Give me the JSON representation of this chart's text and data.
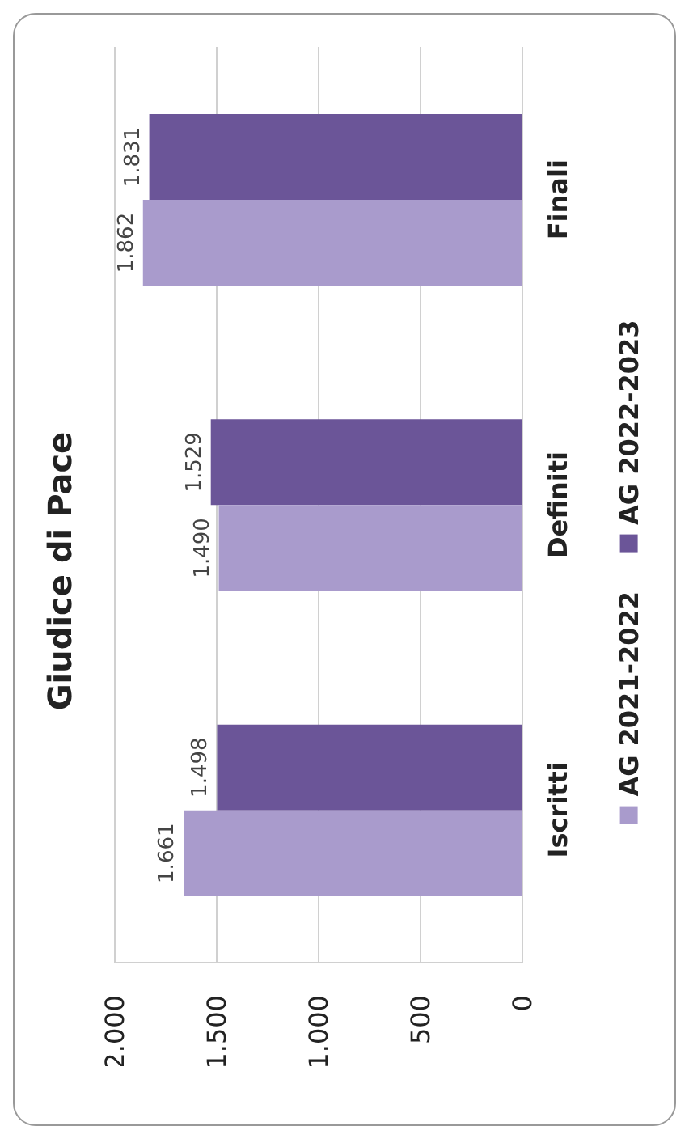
{
  "chart_data": {
    "type": "bar",
    "orientation": "horizontal",
    "title": "Giudice di Pace",
    "categories": [
      "Finali",
      "Definiti",
      "Iscritti"
    ],
    "series": [
      {
        "name": "AG 2021-2022",
        "color": "#a99bcc",
        "values": [
          1862,
          1490,
          1661
        ],
        "value_labels": [
          "1.862",
          "1.490",
          "1.661"
        ]
      },
      {
        "name": "AG 2022-2023",
        "color": "#6b5598",
        "values": [
          1831,
          1529,
          1498
        ],
        "value_labels": [
          "1.831",
          "1.529",
          "1.498"
        ]
      }
    ],
    "xlim": [
      2000,
      0
    ],
    "xticks": [
      {
        "value": 2000,
        "label": "2.000"
      },
      {
        "value": 1500,
        "label": "1.500"
      },
      {
        "value": 1000,
        "label": "1.000"
      },
      {
        "value": 500,
        "label": "500"
      },
      {
        "value": 0,
        "label": "0"
      }
    ],
    "grid": "x",
    "legend": "right"
  }
}
